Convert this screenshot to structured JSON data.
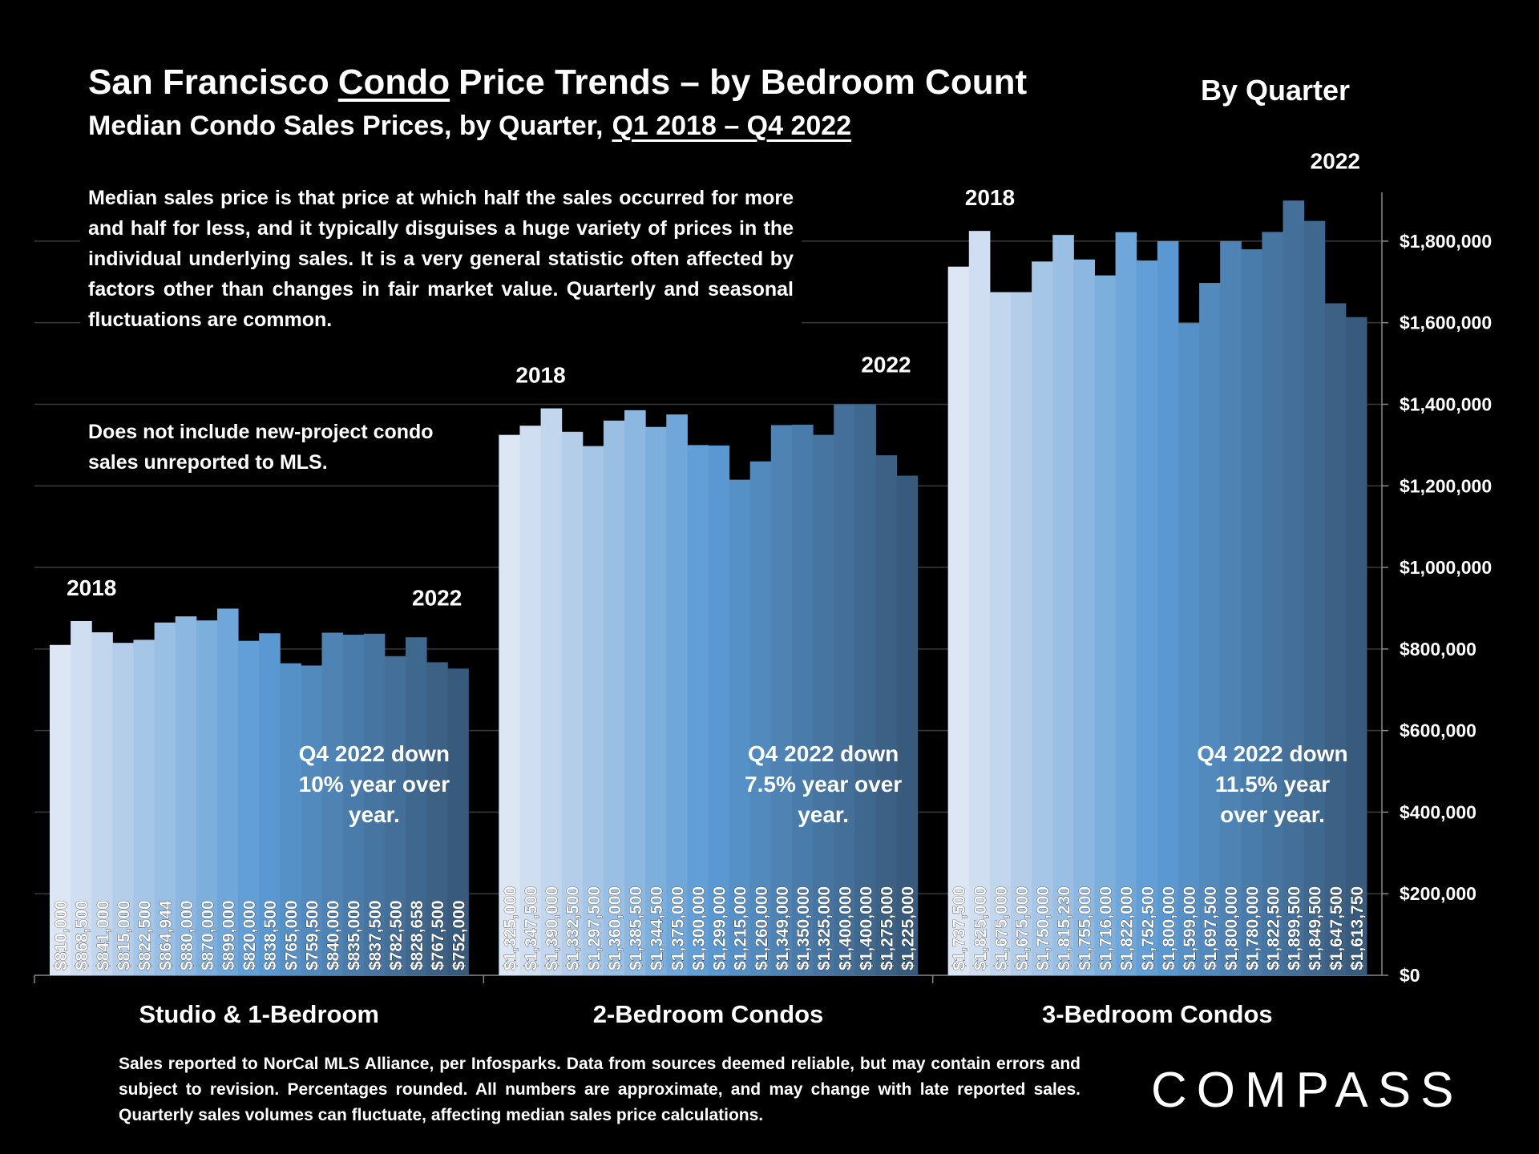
{
  "header": {
    "title": {
      "before": "San Francisco",
      "underlined": "Condo",
      "after": "Price Trends – by Bedroom Count"
    },
    "subtitle": {
      "before": "Median Condo Sales Prices, by Quarter,",
      "underlined": "Q1 2018 – Q4 2022"
    },
    "corner": "By Quarter"
  },
  "notes": [
    "Median sales price is that price at which half the sales occurred for more and half for less, and it typically disguises a huge variety of prices in the individual underlying sales. It is a very general statistic often affected by factors other than changes in fair market value. Quarterly and seasonal fluctuations are common.",
    "Does not include new-project condo sales unreported to MLS."
  ],
  "footer": "Sales reported to NorCal MLS Alliance, per Infosparks. Data from sources deemed reliable, but may contain errors and subject to revision. Percentages rounded. All numbers are approximate, and may change with late reported sales. Quarterly sales volumes can fluctuate, affecting median sales price calculations.",
  "logo": "COMPASS",
  "chart_data": {
    "type": "grouped-bar",
    "ylim": [
      0,
      1900000
    ],
    "yticks": [
      {
        "value": 0,
        "label": "$0"
      },
      {
        "value": 200000,
        "label": "$200,000"
      },
      {
        "value": 400000,
        "label": "$400,000"
      },
      {
        "value": 600000,
        "label": "$600,000"
      },
      {
        "value": 800000,
        "label": "$800,000"
      },
      {
        "value": 1000000,
        "label": "$1,000,000"
      },
      {
        "value": 1200000,
        "label": "$1,200,000"
      },
      {
        "value": 1400000,
        "label": "$1,400,000"
      },
      {
        "value": 1600000,
        "label": "$1,600,000"
      },
      {
        "value": 1800000,
        "label": "$1,800,000"
      }
    ],
    "grid": true,
    "colors": [
      "#dde6f4",
      "#5b9bd5",
      "#385a7c"
    ],
    "groups": [
      {
        "name": "Studio & 1-Bedroom",
        "start_label": "2018",
        "end_label": "2022",
        "note": [
          "Q4 2022 down",
          "10% year over",
          "year."
        ],
        "values": [
          810000,
          868500,
          841000,
          815000,
          822500,
          864944,
          880000,
          870000,
          899000,
          820000,
          838500,
          765000,
          759500,
          840000,
          835000,
          837500,
          782500,
          828658,
          767500,
          752000
        ],
        "value_labels": [
          "$810,000",
          "$868,500",
          "$841,000",
          "$815,000",
          "$822,500",
          "$864,944",
          "$880,000",
          "$870,000",
          "$899,000",
          "$820,000",
          "$838,500",
          "$765,000",
          "$759,500",
          "$840,000",
          "$835,000",
          "$837,500",
          "$782,500",
          "$828,658",
          "$767,500",
          "$752,000"
        ]
      },
      {
        "name": "2-Bedroom Condos",
        "start_label": "2018",
        "end_label": "2022",
        "note": [
          "Q4 2022 down",
          "7.5% year over",
          "year."
        ],
        "values": [
          1325000,
          1347500,
          1390000,
          1332500,
          1297500,
          1360000,
          1385500,
          1344500,
          1375000,
          1300000,
          1299000,
          1215000,
          1260000,
          1349000,
          1350000,
          1325000,
          1400000,
          1400000,
          1275000,
          1225000
        ],
        "value_labels": [
          "$1,325,000",
          "$1,347,500",
          "$1,390,000",
          "$1,332,500",
          "$1,297,500",
          "$1,360,000",
          "$1,385,500",
          "$1,344,500",
          "$1,375,000",
          "$1,300,000",
          "$1,299,000",
          "$1,215,000",
          "$1,260,000",
          "$1,349,000",
          "$1,350,000",
          "$1,325,000",
          "$1,400,000",
          "$1,400,000",
          "$1,275,000",
          "$1,225,000"
        ]
      },
      {
        "name": "3-Bedroom Condos",
        "start_label": "2018",
        "end_label": "2022",
        "note": [
          "Q4 2022 down",
          "11.5% year",
          "over year."
        ],
        "values": [
          1737500,
          1825000,
          1675000,
          1675000,
          1750000,
          1815230,
          1755000,
          1716000,
          1822000,
          1752500,
          1800000,
          1599000,
          1697500,
          1800000,
          1780000,
          1822500,
          1899500,
          1849500,
          1647500,
          1613750
        ],
        "value_labels": [
          "$1,737,500",
          "$1,825,000",
          "$1,675,000",
          "$1,675,000",
          "$1,750,000",
          "$1,815,230",
          "$1,755,000",
          "$1,716,000",
          "$1,822,000",
          "$1,752,500",
          "$1,800,000",
          "$1,599,000",
          "$1,697,500",
          "$1,800,000",
          "$1,780,000",
          "$1,822,500",
          "$1,899,500",
          "$1,849,500",
          "$1,647,500",
          "$1,613,750"
        ]
      }
    ]
  }
}
